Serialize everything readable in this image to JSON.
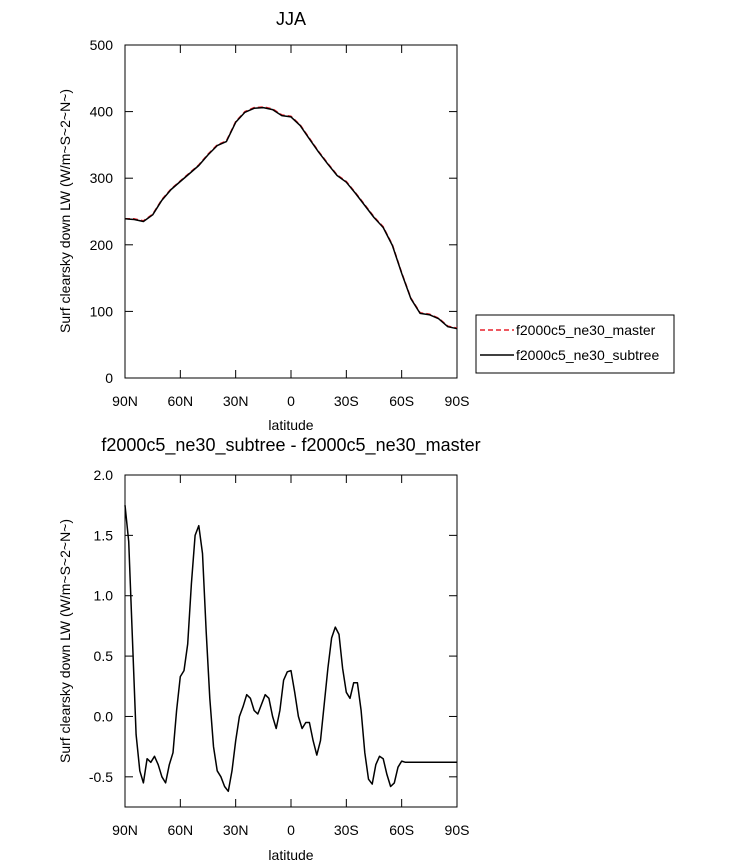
{
  "chart_data": [
    {
      "type": "line",
      "title": "JJA",
      "xlabel": "latitude",
      "ylabel": "Surf clearsky down LW (W/m~S~2~N~)",
      "xlim": [
        90,
        -90
      ],
      "ylim": [
        0,
        500
      ],
      "xticks": [
        90,
        60,
        30,
        0,
        -30,
        -60,
        -90
      ],
      "xtick_labels": [
        "90N",
        "60N",
        "30N",
        "0",
        "30S",
        "60S",
        "90S"
      ],
      "yticks": [
        0,
        100,
        200,
        300,
        400,
        500
      ],
      "ytick_labels": [
        "0",
        "100",
        "200",
        "300",
        "400",
        "500"
      ],
      "legend_position": "right",
      "x": [
        90,
        85,
        80,
        75,
        70,
        65,
        60,
        55,
        50,
        45,
        40,
        35,
        30,
        25,
        20,
        15,
        10,
        5,
        0,
        -5,
        -10,
        -15,
        -20,
        -25,
        -30,
        -35,
        -40,
        -45,
        -50,
        -55,
        -60,
        -65,
        -70,
        -75,
        -80,
        -85,
        -90
      ],
      "series": [
        {
          "name": "f2000c5_ne30_master",
          "style": "dashed",
          "color": "#e8212b",
          "values": [
            239,
            239,
            236,
            246,
            268,
            284,
            296,
            308,
            320,
            336,
            350,
            356,
            385,
            400,
            406,
            407,
            404,
            395,
            393,
            380,
            360,
            340,
            322,
            305,
            295,
            278,
            260,
            242,
            227,
            200,
            158,
            120,
            98,
            96,
            90,
            78,
            75
          ]
        },
        {
          "name": "f2000c5_ne30_subtree",
          "style": "solid",
          "color": "#000000",
          "values": [
            239,
            238,
            235,
            245,
            267,
            283,
            295,
            307,
            319,
            335,
            349,
            355,
            384,
            399,
            405,
            406,
            403,
            394,
            392,
            379,
            359,
            339,
            321,
            304,
            294,
            277,
            259,
            241,
            226,
            199,
            157,
            119,
            97,
            95,
            89,
            77,
            74
          ]
        }
      ]
    },
    {
      "type": "line",
      "title": "f2000c5_ne30_subtree - f2000c5_ne30_master",
      "xlabel": "latitude",
      "ylabel": "Surf clearsky down LW (W/m~S~2~N~)",
      "xlim": [
        90,
        -90
      ],
      "ylim": [
        -0.75,
        2.0
      ],
      "xticks": [
        90,
        60,
        30,
        0,
        -30,
        -60,
        -90
      ],
      "xtick_labels": [
        "90N",
        "60N",
        "30N",
        "0",
        "30S",
        "60S",
        "90S"
      ],
      "yticks": [
        -0.5,
        0.0,
        0.5,
        1.0,
        1.5,
        2.0
      ],
      "ytick_labels": [
        "-0.5",
        "0.0",
        "0.5",
        "1.0",
        "1.5",
        "2.0"
      ],
      "x": [
        90,
        88,
        86,
        84,
        82,
        80,
        78,
        76,
        74,
        72,
        70,
        68,
        66,
        64,
        62,
        60,
        58,
        56,
        54,
        52,
        50,
        48,
        46,
        44,
        42,
        40,
        38,
        36,
        34,
        32,
        30,
        28,
        26,
        24,
        22,
        20,
        18,
        16,
        14,
        12,
        10,
        8,
        6,
        4,
        2,
        0,
        -2,
        -4,
        -6,
        -8,
        -10,
        -12,
        -14,
        -16,
        -18,
        -20,
        -22,
        -24,
        -26,
        -28,
        -30,
        -32,
        -34,
        -36,
        -38,
        -40,
        -42,
        -44,
        -46,
        -48,
        -50,
        -52,
        -54,
        -56,
        -58,
        -60,
        -62,
        -64,
        -66,
        -68,
        -70,
        -72,
        -74,
        -76,
        -78,
        -80,
        -82,
        -84,
        -86,
        -88,
        -90
      ],
      "series": [
        {
          "name": "f2000c5_ne30_subtree - f2000c5_ne30_master",
          "style": "solid",
          "color": "#000000",
          "values": [
            1.75,
            1.45,
            0.65,
            -0.15,
            -0.45,
            -0.55,
            -0.35,
            -0.38,
            -0.33,
            -0.4,
            -0.5,
            -0.55,
            -0.4,
            -0.3,
            0.05,
            0.33,
            0.38,
            0.6,
            1.1,
            1.5,
            1.58,
            1.35,
            0.7,
            0.15,
            -0.25,
            -0.45,
            -0.5,
            -0.58,
            -0.62,
            -0.45,
            -0.2,
            0.0,
            0.08,
            0.18,
            0.15,
            0.05,
            0.02,
            0.1,
            0.18,
            0.15,
            0.0,
            -0.1,
            0.05,
            0.3,
            0.37,
            0.38,
            0.2,
            0.0,
            -0.1,
            -0.05,
            -0.05,
            -0.2,
            -0.32,
            -0.2,
            0.1,
            0.4,
            0.65,
            0.74,
            0.68,
            0.4,
            0.2,
            0.15,
            0.28,
            0.28,
            0.05,
            -0.3,
            -0.52,
            -0.56,
            -0.4,
            -0.33,
            -0.35,
            -0.48,
            -0.58,
            -0.55,
            -0.42,
            -0.37,
            -0.38,
            -0.38,
            -0.38,
            -0.38,
            -0.38,
            -0.38,
            -0.38,
            -0.38,
            -0.38,
            -0.38,
            -0.38,
            -0.38,
            -0.38,
            -0.38,
            -0.38
          ]
        }
      ]
    }
  ]
}
